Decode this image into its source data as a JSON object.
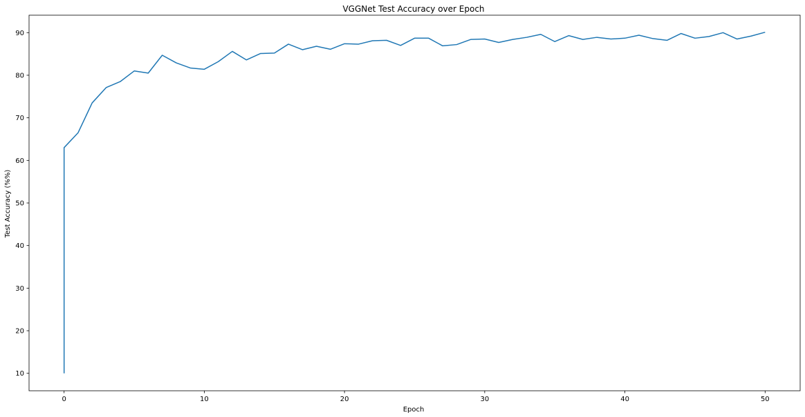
{
  "chart_data": {
    "type": "line",
    "title": "VGGNet Test Accuracy over Epoch",
    "xlabel": "Epoch",
    "ylabel": "Test Accuracy (%%)",
    "xlim": [
      -2.5,
      52.5
    ],
    "ylim": [
      5.9,
      94.1
    ],
    "xticks": [
      0,
      10,
      20,
      30,
      40,
      50
    ],
    "yticks": [
      10,
      20,
      30,
      40,
      50,
      60,
      70,
      80,
      90
    ],
    "grid": false,
    "series": [
      {
        "color": "#1f77b4",
        "x": [
          0,
          0,
          1,
          2,
          3,
          4,
          5,
          6,
          7,
          8,
          9,
          10,
          11,
          12,
          13,
          14,
          15,
          16,
          17,
          18,
          19,
          20,
          21,
          22,
          23,
          24,
          25,
          26,
          27,
          28,
          29,
          30,
          31,
          32,
          33,
          34,
          35,
          36,
          37,
          38,
          39,
          40,
          41,
          42,
          43,
          44,
          45,
          46,
          47,
          48,
          49,
          50
        ],
        "y": [
          10.0,
          63.0,
          66.5,
          73.5,
          77.1,
          78.5,
          81.0,
          80.5,
          84.7,
          82.9,
          81.7,
          81.4,
          83.2,
          85.6,
          83.6,
          85.1,
          85.2,
          87.3,
          86.0,
          86.8,
          86.1,
          87.4,
          87.3,
          88.1,
          88.2,
          87.0,
          88.7,
          88.7,
          86.9,
          87.2,
          88.4,
          88.5,
          87.7,
          88.4,
          88.9,
          89.6,
          87.9,
          89.3,
          88.4,
          88.9,
          88.5,
          88.7,
          89.4,
          88.6,
          88.2,
          89.8,
          88.7,
          89.1,
          90.0,
          88.5,
          89.2,
          90.1
        ]
      }
    ]
  }
}
